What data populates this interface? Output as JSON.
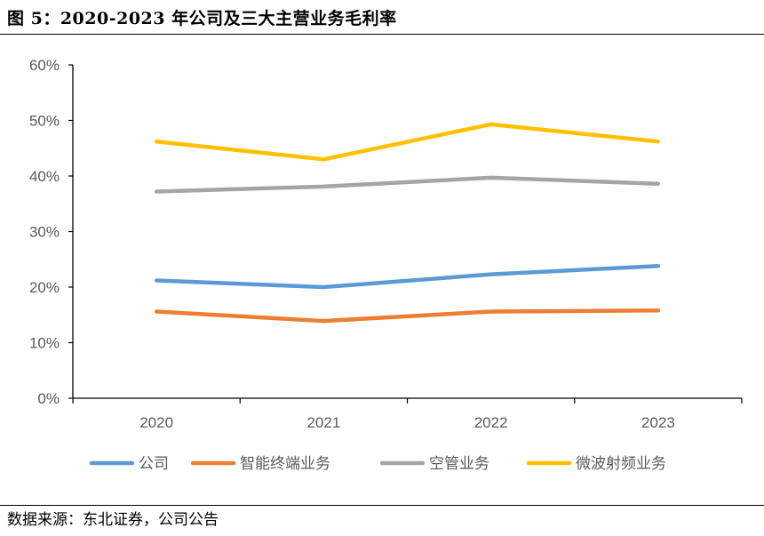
{
  "figure": {
    "title": "图 5：2020-2023 年公司及三大主营业务毛利率",
    "source": "数据来源：东北证券，公司公告"
  },
  "chart_data": {
    "type": "line",
    "categories": [
      "2020",
      "2021",
      "2022",
      "2023"
    ],
    "ylim": [
      0,
      60
    ],
    "yticks": [
      "0%",
      "10%",
      "20%",
      "30%",
      "40%",
      "50%",
      "60%"
    ],
    "y_unit": "%",
    "grid": false,
    "legend_position": "bottom",
    "series": [
      {
        "name": "公司",
        "color": "#5B9BD5",
        "values": [
          21.2,
          20.0,
          22.3,
          23.8
        ]
      },
      {
        "name": "智能终端业务",
        "color": "#ED7D31",
        "values": [
          15.6,
          13.9,
          15.6,
          15.8
        ]
      },
      {
        "name": "空管业务",
        "color": "#A5A5A5",
        "values": [
          37.2,
          38.1,
          39.7,
          38.6
        ]
      },
      {
        "name": "微波射频业务",
        "color": "#FFC000",
        "values": [
          46.2,
          43.0,
          49.3,
          46.2
        ]
      }
    ]
  }
}
